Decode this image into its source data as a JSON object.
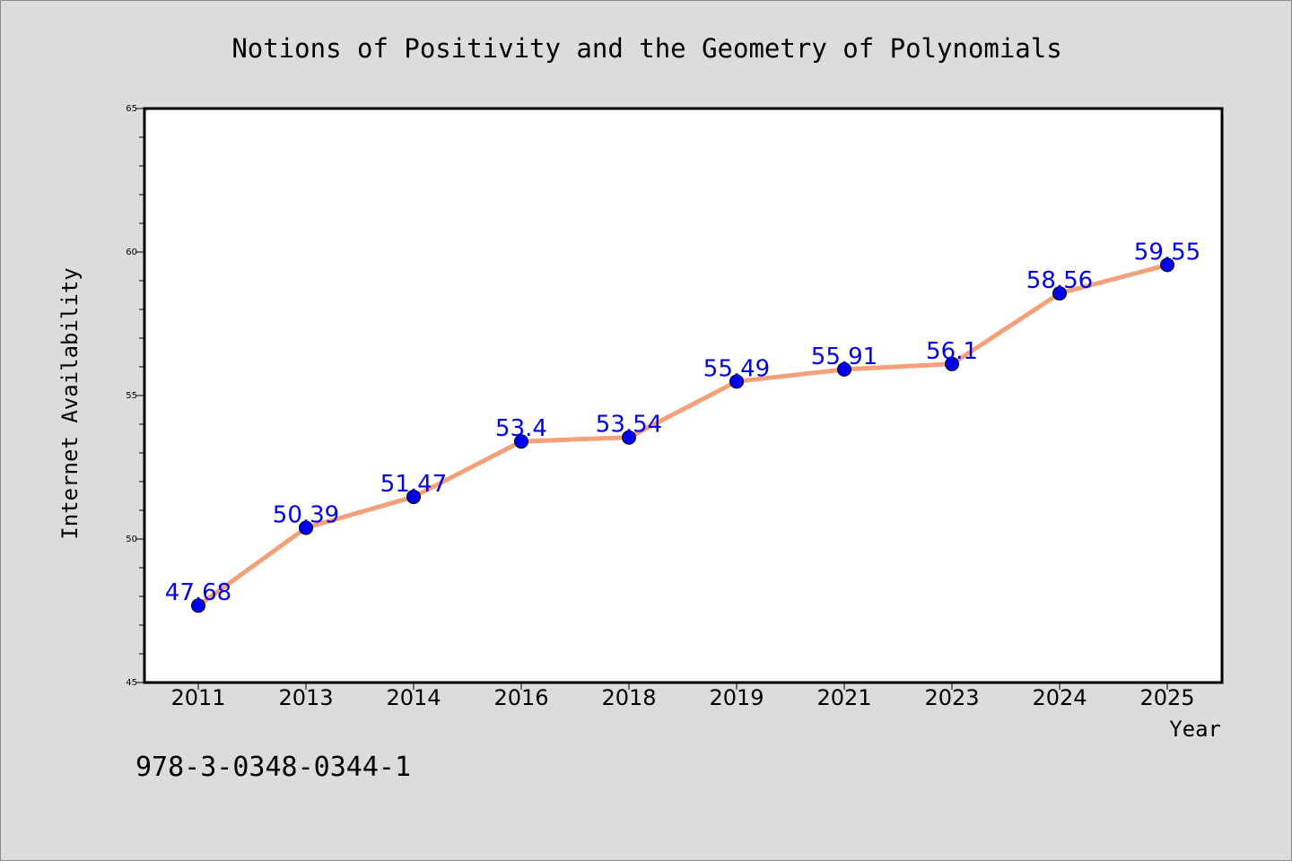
{
  "chart_data": {
    "type": "line",
    "title": "Notions of Positivity and the Geometry of Polynomials",
    "xlabel": "Year",
    "ylabel": "Internet Availability",
    "categories": [
      "2011",
      "2013",
      "2014",
      "2016",
      "2018",
      "2019",
      "2021",
      "2023",
      "2024",
      "2025"
    ],
    "series": [
      {
        "values": [
          47.68,
          50.39,
          51.47,
          53.4,
          53.54,
          55.49,
          55.91,
          56.1,
          58.56,
          59.55
        ],
        "data_labels": [
          "47.68",
          "50.39",
          "51.47",
          "53.4",
          "53.54",
          "55.49",
          "55.91",
          "56.1",
          "58.56",
          "59.55"
        ],
        "line_color": "#f4a07a",
        "marker_color": "#0000ee",
        "label_color": "#0000ee"
      }
    ],
    "ylim": [
      45,
      65
    ],
    "yticks": [
      "45",
      "50",
      "55",
      "60",
      "65"
    ],
    "grid": false,
    "legend": "none"
  },
  "footer_text": "978-3-0348-0344-1",
  "colors": {
    "background": "#dcdcdc",
    "plot_background": "#ffffff",
    "axes": "#000000"
  }
}
